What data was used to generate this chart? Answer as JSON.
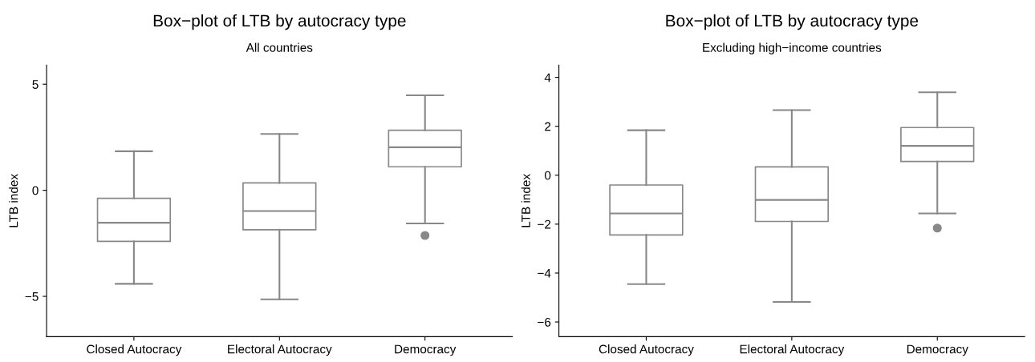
{
  "chart_data": [
    {
      "type": "box",
      "title": "Box−plot of LTB by autocracy type",
      "subtitle": "All countries",
      "ylabel": "LTB index",
      "categories": [
        "Closed Autocracy",
        "Electoral Autocracy",
        "Democracy"
      ],
      "ylim": [
        -6.9,
        5.9
      ],
      "yticks": [
        {
          "value": -5,
          "label": "−5"
        },
        0,
        5
      ],
      "grid": false,
      "color": "#888888",
      "boxes": [
        {
          "low": -4.41,
          "q1": -2.41,
          "median": -1.53,
          "q3": -0.38,
          "high": 1.84
        },
        {
          "low": -5.14,
          "q1": -1.86,
          "median": -0.98,
          "q3": 0.35,
          "high": 2.66
        },
        {
          "low": -1.56,
          "q1": 1.11,
          "median": 2.03,
          "q3": 2.83,
          "high": 4.48,
          "outliers": [
            -2.13
          ]
        }
      ]
    },
    {
      "type": "box",
      "title": "Box−plot of LTB by autocracy type",
      "subtitle": "Excluding high−income countries",
      "ylabel": "LTB index",
      "categories": [
        "Closed Autocracy",
        "Electoral Autocracy",
        "Democracy"
      ],
      "ylim": [
        -6.6,
        4.5
      ],
      "yticks": [
        {
          "value": -6,
          "label": "−6"
        },
        {
          "value": -4,
          "label": "−4"
        },
        {
          "value": -2,
          "label": "−2"
        },
        0,
        2,
        4
      ],
      "grid": false,
      "color": "#888888",
      "boxes": [
        {
          "low": -4.45,
          "q1": -2.44,
          "median": -1.56,
          "q3": -0.4,
          "high": 1.84
        },
        {
          "low": -5.18,
          "q1": -1.89,
          "median": -1.01,
          "q3": 0.34,
          "high": 2.66
        },
        {
          "low": -1.56,
          "q1": 0.56,
          "median": 1.2,
          "q3": 1.95,
          "high": 3.39,
          "outliers": [
            -2.16
          ]
        }
      ]
    }
  ]
}
